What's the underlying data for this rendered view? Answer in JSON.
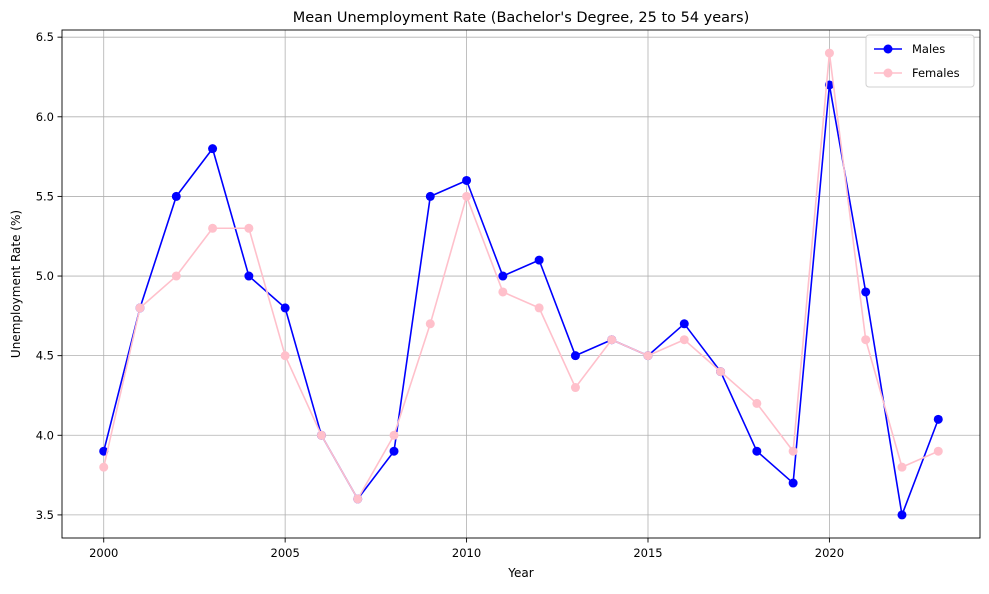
{
  "chart_data": {
    "type": "line",
    "title": "Mean Unemployment Rate (Bachelor's Degree, 25 to 54 years)",
    "xlabel": "Year",
    "ylabel": "Unemployment Rate (%)",
    "x": [
      2000,
      2001,
      2002,
      2003,
      2004,
      2005,
      2006,
      2007,
      2008,
      2009,
      2010,
      2011,
      2012,
      2013,
      2014,
      2015,
      2016,
      2017,
      2018,
      2019,
      2020,
      2021,
      2022,
      2023
    ],
    "series": [
      {
        "name": "Males",
        "color": "#0000ff",
        "values": [
          3.9,
          4.8,
          5.5,
          5.8,
          5.0,
          4.8,
          4.0,
          3.6,
          3.9,
          5.5,
          5.6,
          5.0,
          5.1,
          4.5,
          4.6,
          4.5,
          4.7,
          4.4,
          3.9,
          3.7,
          6.2,
          4.9,
          3.5,
          4.1
        ]
      },
      {
        "name": "Females",
        "color": "#ffc0cb",
        "values": [
          3.8,
          4.8,
          5.0,
          5.3,
          5.3,
          4.5,
          4.0,
          3.6,
          4.0,
          4.7,
          5.5,
          4.9,
          4.8,
          4.3,
          4.6,
          4.5,
          4.6,
          4.4,
          4.2,
          3.9,
          6.4,
          4.6,
          3.8,
          3.9
        ]
      }
    ],
    "xlim": [
      1998.85,
      2024.15
    ],
    "ylim": [
      3.355,
      6.545
    ],
    "xticks": [
      2000,
      2005,
      2010,
      2015,
      2020
    ],
    "xtick_labels": [
      "2000",
      "2005",
      "2010",
      "2015",
      "2020"
    ],
    "yticks": [
      3.5,
      4.0,
      4.5,
      5.0,
      5.5,
      6.0,
      6.5
    ],
    "ytick_labels": [
      "3.5",
      "4.0",
      "4.5",
      "5.0",
      "5.5",
      "6.0",
      "6.5"
    ],
    "grid": true,
    "legend_position": "upper right",
    "marker": "circle"
  }
}
